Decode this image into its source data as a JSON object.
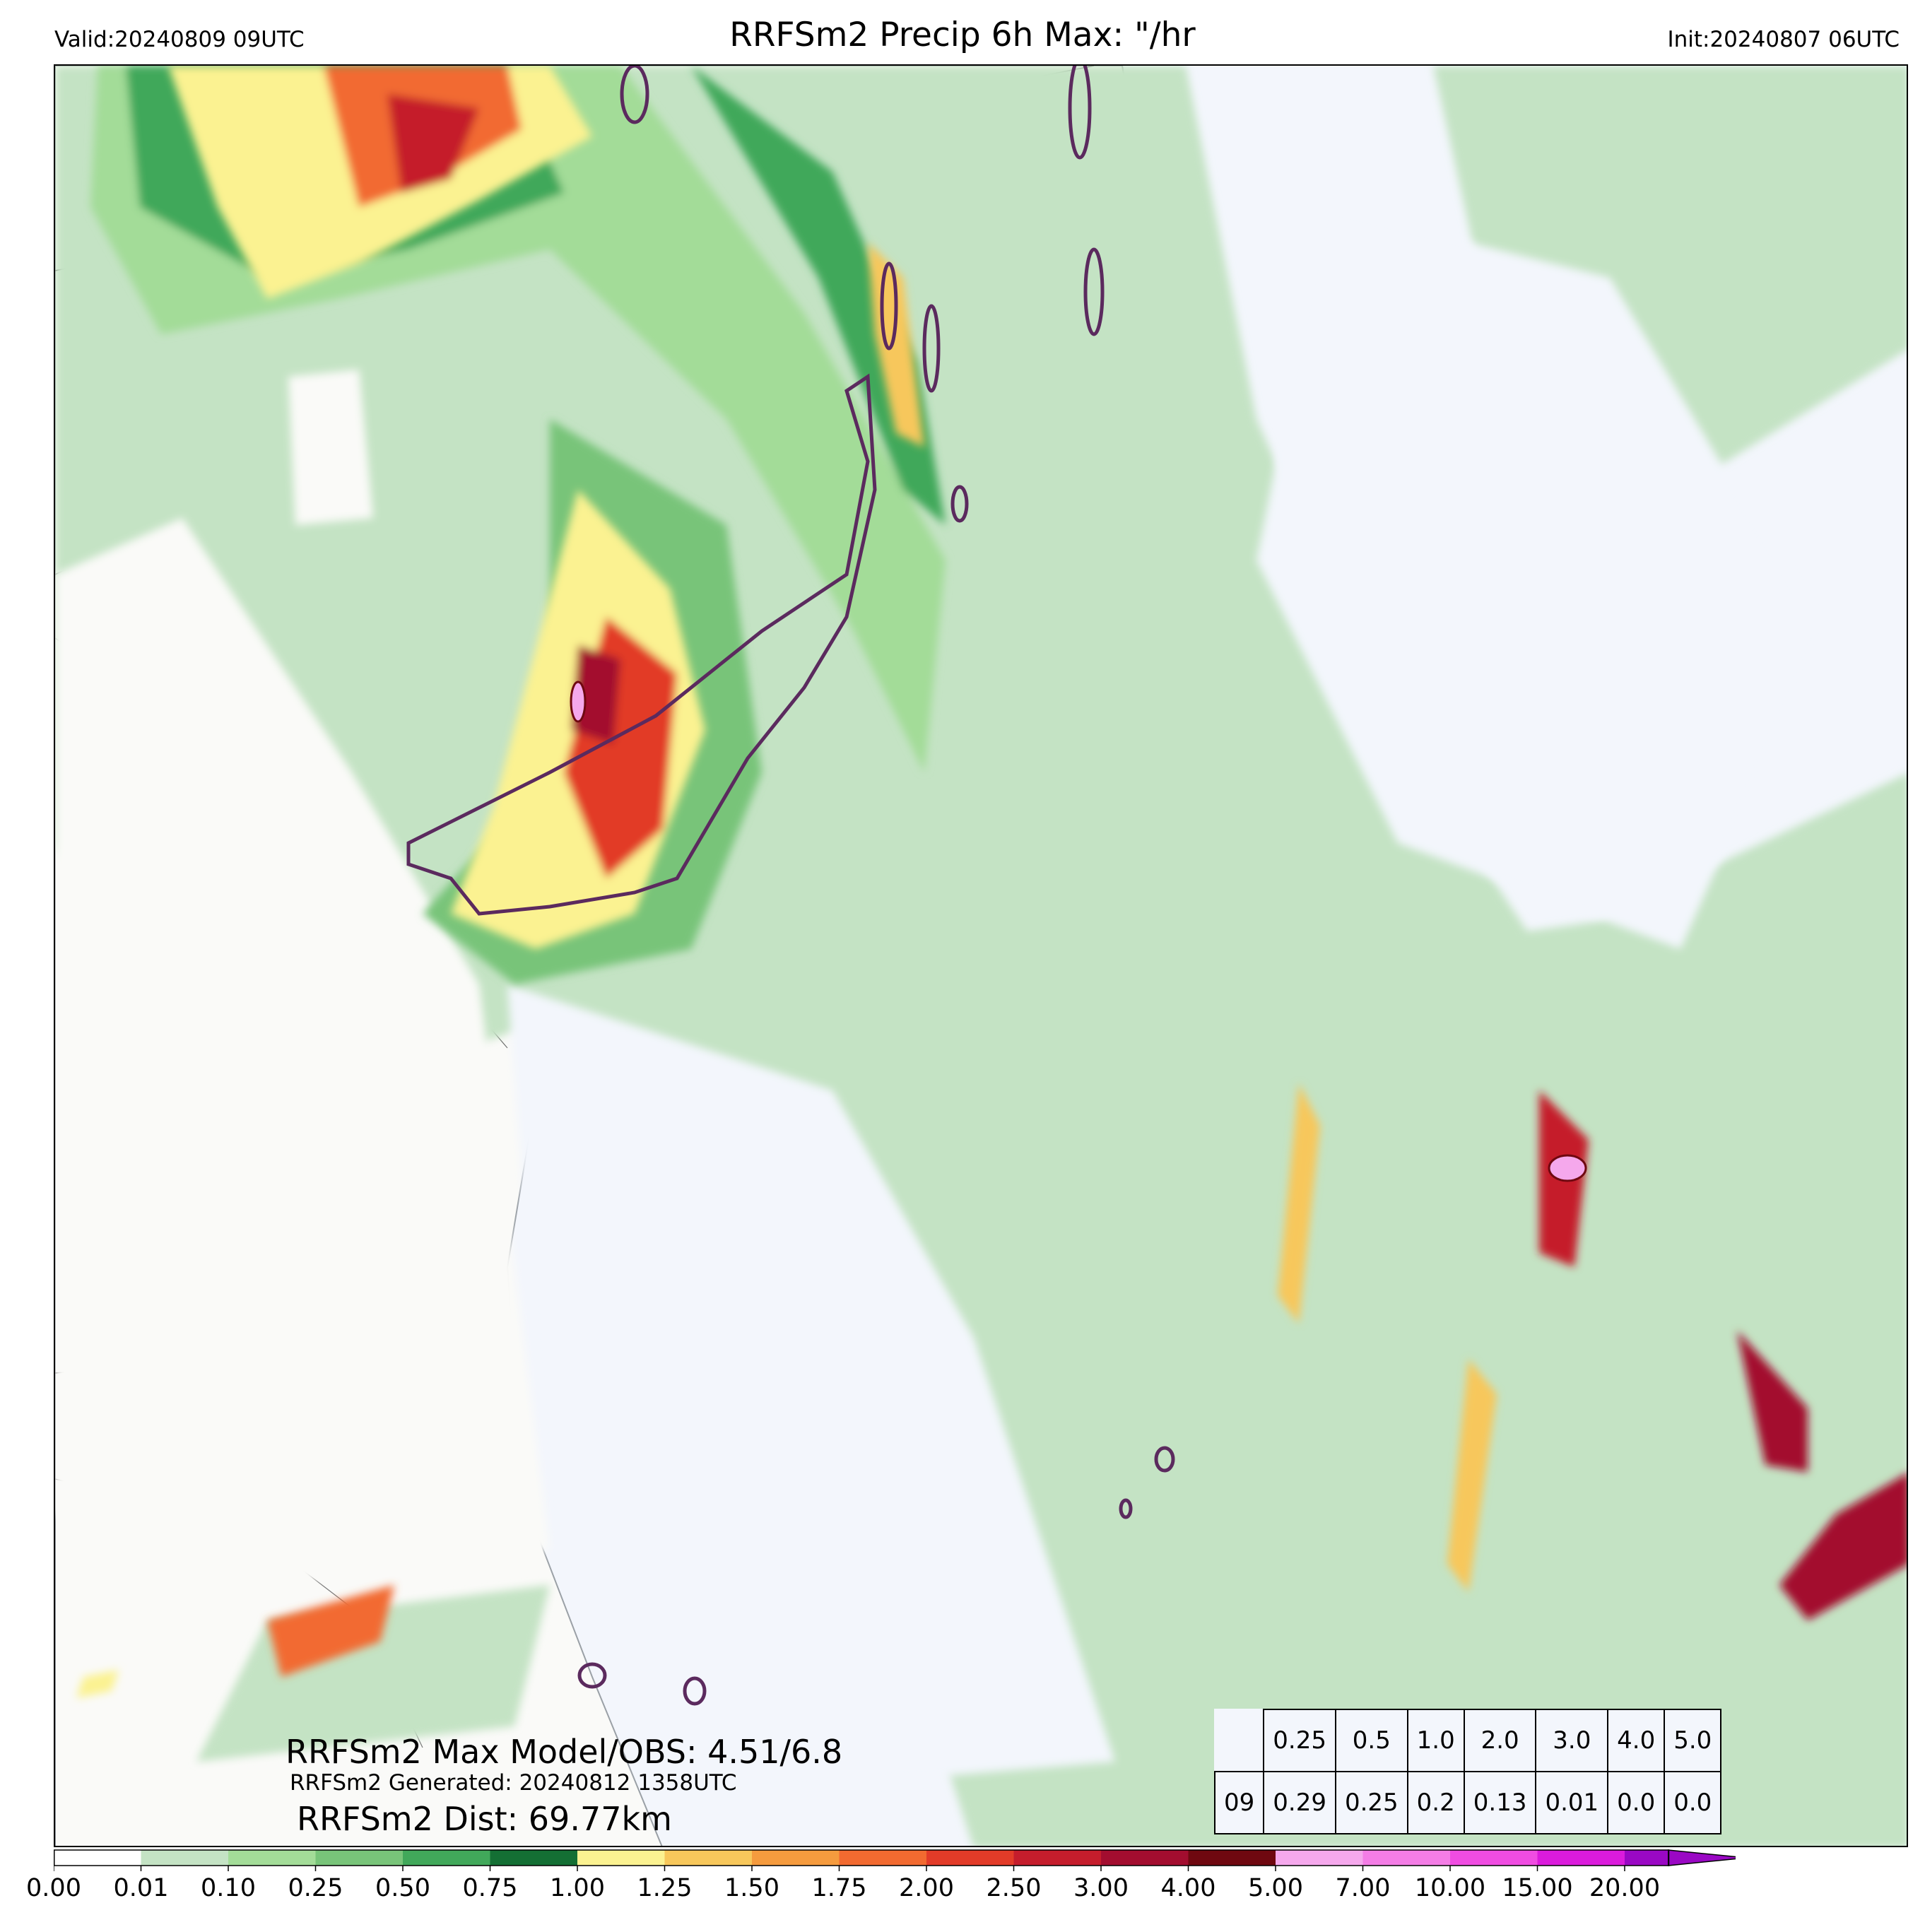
{
  "header": {
    "valid": "Valid:20240809 09UTC",
    "title": "RRFSm2 Precip 6h Max: \"/hr",
    "init": "Init:20240807 06UTC"
  },
  "stats": {
    "max_model_obs": "RRFSm2 Max Model/OBS: 4.51/6.8",
    "generated": "RRFSm2 Generated: 20240812 1358UTC",
    "dist": "RRFSm2 Dist: 69.77km"
  },
  "threshold_table": {
    "thresholds": [
      "0.25",
      "0.5",
      "1.0",
      "2.0",
      "3.0",
      "4.0",
      "5.0"
    ],
    "row_label": "09",
    "values": [
      "0.29",
      "0.25",
      "0.2",
      "0.13",
      "0.01",
      "0.0",
      "0.0"
    ]
  },
  "colorbar": {
    "levels": [
      "0.00",
      "0.01",
      "0.10",
      "0.25",
      "0.50",
      "0.75",
      "1.00",
      "1.25",
      "1.50",
      "1.75",
      "2.00",
      "2.50",
      "3.00",
      "4.00",
      "5.00",
      "7.00",
      "10.00",
      "15.00",
      "20.00"
    ],
    "colors": [
      "#ffffff",
      "#c4e3c4",
      "#a3dc98",
      "#78c479",
      "#41a85a",
      "#146f34",
      "#fbf291",
      "#f7c75b",
      "#f59b3e",
      "#f26a30",
      "#e23b28",
      "#c51d2c",
      "#a30d2f",
      "#6f0810",
      "#f5a8ec",
      "#f47de6",
      "#f04ce2",
      "#db1bdc",
      "#9a08c4"
    ]
  },
  "map_colors": {
    "ocean": "#f3f6fc",
    "land": "#fafaf8",
    "obs_contour": "#5b2a5e"
  }
}
